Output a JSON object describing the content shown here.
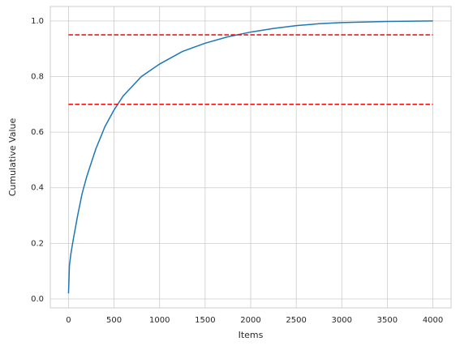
{
  "chart_data": {
    "type": "line",
    "xlabel": "Items",
    "ylabel": "Cumulative Value",
    "xlim": [
      -200,
      4200
    ],
    "ylim": [
      -0.032,
      1.052
    ],
    "xticks": [
      0,
      500,
      1000,
      1500,
      2000,
      2500,
      3000,
      3500,
      4000
    ],
    "yticks": [
      {
        "value": 0,
        "label": "0.0"
      },
      0.2,
      0.4,
      0.6,
      0.8,
      {
        "value": 1,
        "label": "1.0"
      }
    ],
    "grid": true,
    "series": [
      {
        "color": "#1f77b4",
        "style": "solid",
        "x": [
          0,
          10,
          25,
          50,
          100,
          150,
          200,
          300,
          400,
          500,
          600,
          800,
          1000,
          1250,
          1500,
          1750,
          2000,
          2250,
          2500,
          2750,
          3000,
          3500,
          4000
        ],
        "values": [
          0.02,
          0.12,
          0.16,
          0.21,
          0.3,
          0.38,
          0.44,
          0.54,
          0.62,
          0.68,
          0.73,
          0.8,
          0.845,
          0.89,
          0.92,
          0.943,
          0.96,
          0.973,
          0.983,
          0.99,
          0.994,
          0.998,
          1.0
        ]
      },
      {
        "color": "#ff0000",
        "style": "dashed",
        "x": [
          0,
          4000
        ],
        "values": [
          0.95,
          0.95
        ]
      },
      {
        "color": "#ff0000",
        "style": "dashed",
        "x": [
          0,
          4000
        ],
        "values": [
          0.7,
          0.7
        ]
      }
    ]
  }
}
